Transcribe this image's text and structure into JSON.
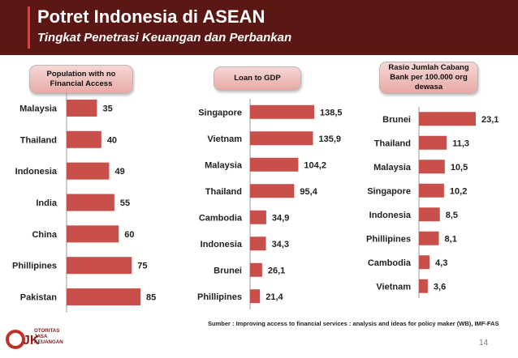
{
  "header": {
    "title": "Potret Indonesia di ASEAN",
    "subtitle": "Tingkat Penetrasi Keuangan dan Perbankan"
  },
  "source": "Sumber : Improving access to financial services : analysis and ideas for policy maker (WB), IMF-FAS",
  "page_number": "14",
  "logo": {
    "mark": "OJK",
    "text_lines": [
      "OTORITAS",
      "JASA",
      "KEUANGAN"
    ]
  },
  "colors": {
    "header_bg": "#5a1714",
    "bar": "#c9504a",
    "pill_bg": "#efc2bf"
  },
  "chart_data": [
    {
      "type": "bar",
      "orientation": "horizontal",
      "title": "Population with no Financial Access",
      "categories": [
        "Malaysia",
        "Thailand",
        "Indonesia",
        "India",
        "China",
        "Phillipines",
        "Pakistan"
      ],
      "values": [
        35,
        40,
        49,
        55,
        60,
        75,
        85
      ],
      "value_labels": [
        "35",
        "40",
        "49",
        "55",
        "60",
        "75",
        "85"
      ],
      "xlim": [
        0,
        85
      ],
      "grid": false
    },
    {
      "type": "bar",
      "orientation": "horizontal",
      "title": "Loan to GDP",
      "categories": [
        "Singapore",
        "Vietnam",
        "Malaysia",
        "Thailand",
        "Cambodia",
        "Indonesia",
        "Brunei",
        "Phillipines"
      ],
      "values": [
        138.5,
        135.9,
        104.2,
        95.4,
        34.9,
        34.3,
        26.1,
        21.4
      ],
      "value_labels": [
        "138,5",
        "135,9",
        "104,2",
        "95,4",
        "34,9",
        "34,3",
        "26,1",
        "21,4"
      ],
      "xlim": [
        0,
        138.5
      ],
      "grid": false
    },
    {
      "type": "bar",
      "orientation": "horizontal",
      "title": "Rasio Jumlah Cabang Bank per 100.000 org dewasa",
      "categories": [
        "Brunei",
        "Thailand",
        "Malaysia",
        "Singapore",
        "Indonesia",
        "Phillipines",
        "Cambodia",
        "Vietnam"
      ],
      "values": [
        23.1,
        11.3,
        10.5,
        10.2,
        8.5,
        8.1,
        4.3,
        3.6
      ],
      "value_labels": [
        "23,1",
        "11,3",
        "10,5",
        "10,2",
        "8,5",
        "8,1",
        "4,3",
        "3,6"
      ],
      "xlim": [
        0,
        23.1
      ],
      "grid": false
    }
  ]
}
